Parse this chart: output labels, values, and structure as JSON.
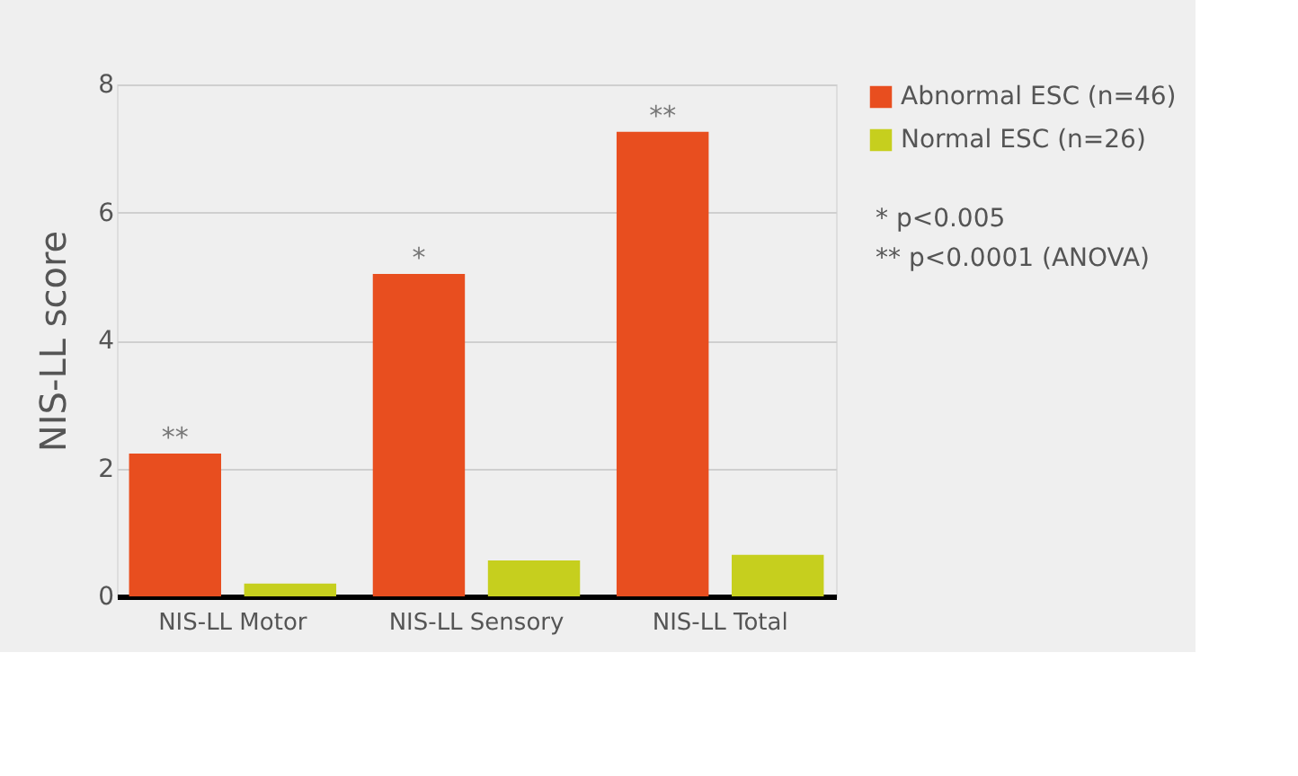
{
  "chart_data": {
    "type": "bar",
    "ylabel": "NIS-LL score",
    "categories": [
      "NIS-LL Motor",
      "NIS-LL Sensory",
      "NIS-LL Total"
    ],
    "series": [
      {
        "name": "Abnormal ESC (n=46)",
        "color": "#e84e1f",
        "values": [
          2.23,
          5.04,
          7.26
        ]
      },
      {
        "name": "Normal ESC (n=26)",
        "color": "#c6cf1e",
        "values": [
          0.2,
          0.56,
          0.65
        ]
      }
    ],
    "ylim": [
      0,
      8
    ],
    "yticks": [
      0,
      2,
      4,
      6,
      8
    ],
    "grid": "y",
    "legend": "top right",
    "annotations": [
      "**",
      "*",
      "**",
      "*     p<0.005",
      "**   p<0.0001 (ANOVA)"
    ]
  }
}
